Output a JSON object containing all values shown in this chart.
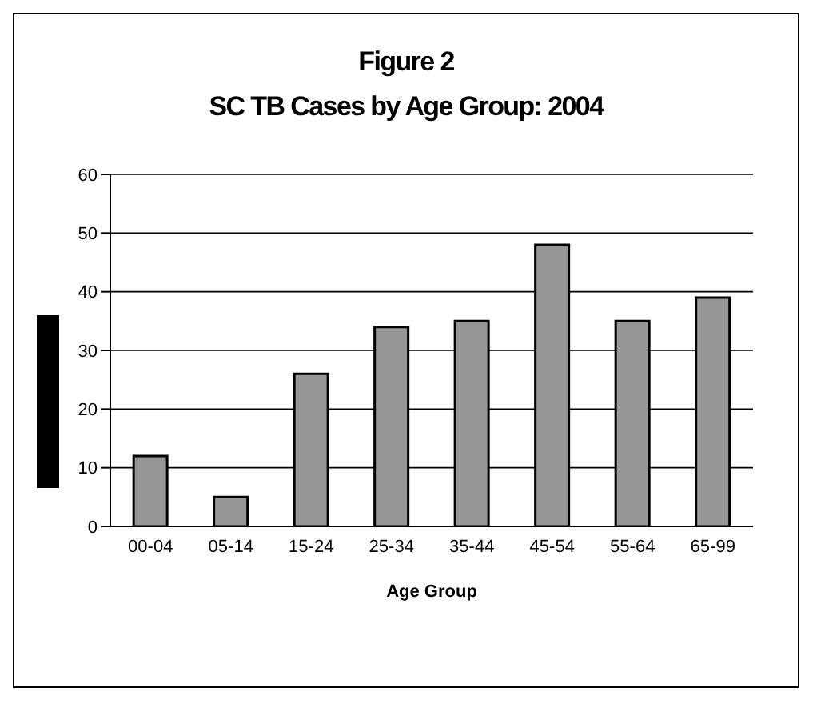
{
  "chart_data": {
    "type": "bar",
    "title": "Figure 2",
    "subtitle": "SC TB Cases by Age Group: 2004",
    "xlabel": "Age Group",
    "categories": [
      "00-04",
      "05-14",
      "15-24",
      "25-34",
      "35-44",
      "45-54",
      "55-64",
      "65-99"
    ],
    "values": [
      12,
      5,
      26,
      34,
      35,
      48,
      35,
      39
    ],
    "color": "#969696",
    "ylim": [
      0,
      60
    ],
    "yticks": [
      0,
      10,
      20,
      30,
      40,
      50,
      60
    ],
    "grid": "y",
    "legend": false
  }
}
